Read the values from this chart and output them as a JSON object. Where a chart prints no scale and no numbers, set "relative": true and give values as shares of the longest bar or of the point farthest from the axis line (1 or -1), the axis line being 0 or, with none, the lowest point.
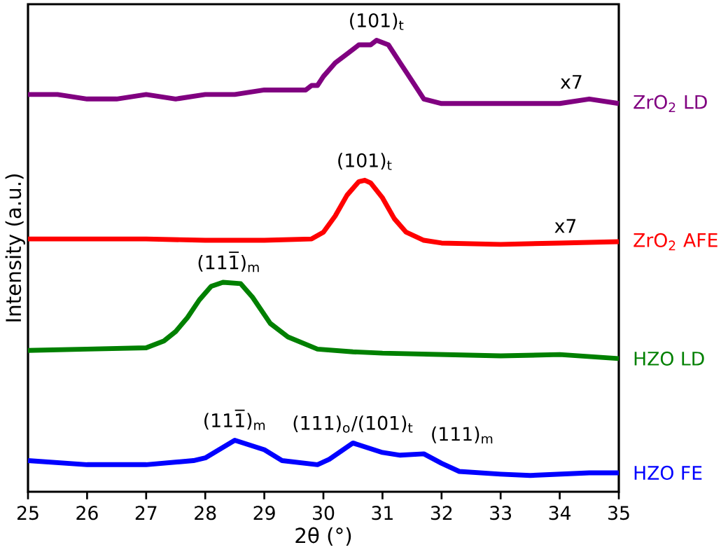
{
  "chart_data": {
    "type": "line",
    "relative": true,
    "xlabel": "2θ (°)",
    "ylabel": "Intensity (a.u.)",
    "xlim": [
      25,
      35
    ],
    "xticks": [
      25,
      26,
      27,
      28,
      29,
      30,
      31,
      32,
      33,
      34,
      35
    ],
    "series": [
      {
        "name": "ZrO$_{2}$ LD",
        "color": "#800080",
        "x": [
          25,
          25.5,
          26,
          26.5,
          27,
          27.5,
          28,
          28.5,
          29,
          29.5,
          29.7,
          29.8,
          29.9,
          30.0,
          30.2,
          30.4,
          30.6,
          30.8,
          30.9,
          31.1,
          31.3,
          31.4,
          31.6,
          31.7,
          32,
          32.5,
          33,
          33.5,
          34,
          34.5,
          35
        ],
        "values": [
          0.88,
          0.88,
          0.87,
          0.87,
          0.88,
          0.87,
          0.88,
          0.88,
          0.89,
          0.89,
          0.89,
          0.9,
          0.9,
          0.92,
          0.95,
          0.97,
          0.99,
          0.99,
          1.0,
          0.99,
          0.95,
          0.93,
          0.89,
          0.87,
          0.86,
          0.86,
          0.86,
          0.86,
          0.86,
          0.87,
          0.86
        ]
      },
      {
        "name": "ZrO$_{2}$ AFE",
        "color": "#ff0000",
        "x": [
          25,
          26,
          27,
          28,
          29,
          29.8,
          30.0,
          30.2,
          30.4,
          30.6,
          30.7,
          30.8,
          31.0,
          31.2,
          31.4,
          31.7,
          32,
          33,
          34,
          35
        ],
        "values": [
          0.56,
          0.56,
          0.56,
          0.557,
          0.557,
          0.56,
          0.575,
          0.611,
          0.657,
          0.687,
          0.69,
          0.684,
          0.651,
          0.605,
          0.575,
          0.557,
          0.551,
          0.548,
          0.551,
          0.554
        ]
      },
      {
        "name": "HZO LD",
        "color": "#008000",
        "x": [
          25,
          26,
          27,
          27.3,
          27.5,
          27.7,
          27.9,
          28.1,
          28.3,
          28.6,
          28.8,
          29.1,
          29.4,
          29.9,
          30.5,
          31,
          32,
          33,
          34,
          35
        ],
        "values": [
          0.313,
          0.316,
          0.319,
          0.334,
          0.355,
          0.386,
          0.425,
          0.455,
          0.464,
          0.461,
          0.431,
          0.373,
          0.343,
          0.316,
          0.31,
          0.307,
          0.304,
          0.301,
          0.304,
          0.295
        ]
      },
      {
        "name": "HZO FE",
        "color": "#0000ff",
        "x": [
          25,
          26,
          27,
          27.8,
          28,
          28.5,
          29,
          29.3,
          29.9,
          30.1,
          30.5,
          31,
          31.3,
          31.7,
          32,
          32.3,
          33,
          33.5,
          34,
          34.5,
          35
        ],
        "values": [
          0.069,
          0.06,
          0.06,
          0.069,
          0.075,
          0.114,
          0.093,
          0.069,
          0.06,
          0.072,
          0.108,
          0.087,
          0.081,
          0.084,
          0.063,
          0.045,
          0.039,
          0.036,
          0.039,
          0.042,
          0.042
        ]
      }
    ],
    "annotations": [
      {
        "text": "(101)$_{t}$",
        "x": 30.9,
        "y": 1.0
      },
      {
        "text": "x7",
        "x": 34.2,
        "y": 0.87
      },
      {
        "text": "(101)$_{t}$",
        "x": 30.7,
        "y": 0.69
      },
      {
        "text": "x7",
        "x": 34.1,
        "y": 0.551
      },
      {
        "text": "(111̅)$_{m}$",
        "x": 28.4,
        "y": 0.464
      },
      {
        "text": "(111̅)$_{m}$",
        "x": 28.5,
        "y": 0.114
      },
      {
        "text": "(111)$_{o}$/(101)$_{t}$",
        "x": 30.5,
        "y": 0.108
      },
      {
        "text": "(111)$_{m}$",
        "x": 31.7,
        "y": 0.084
      }
    ]
  }
}
